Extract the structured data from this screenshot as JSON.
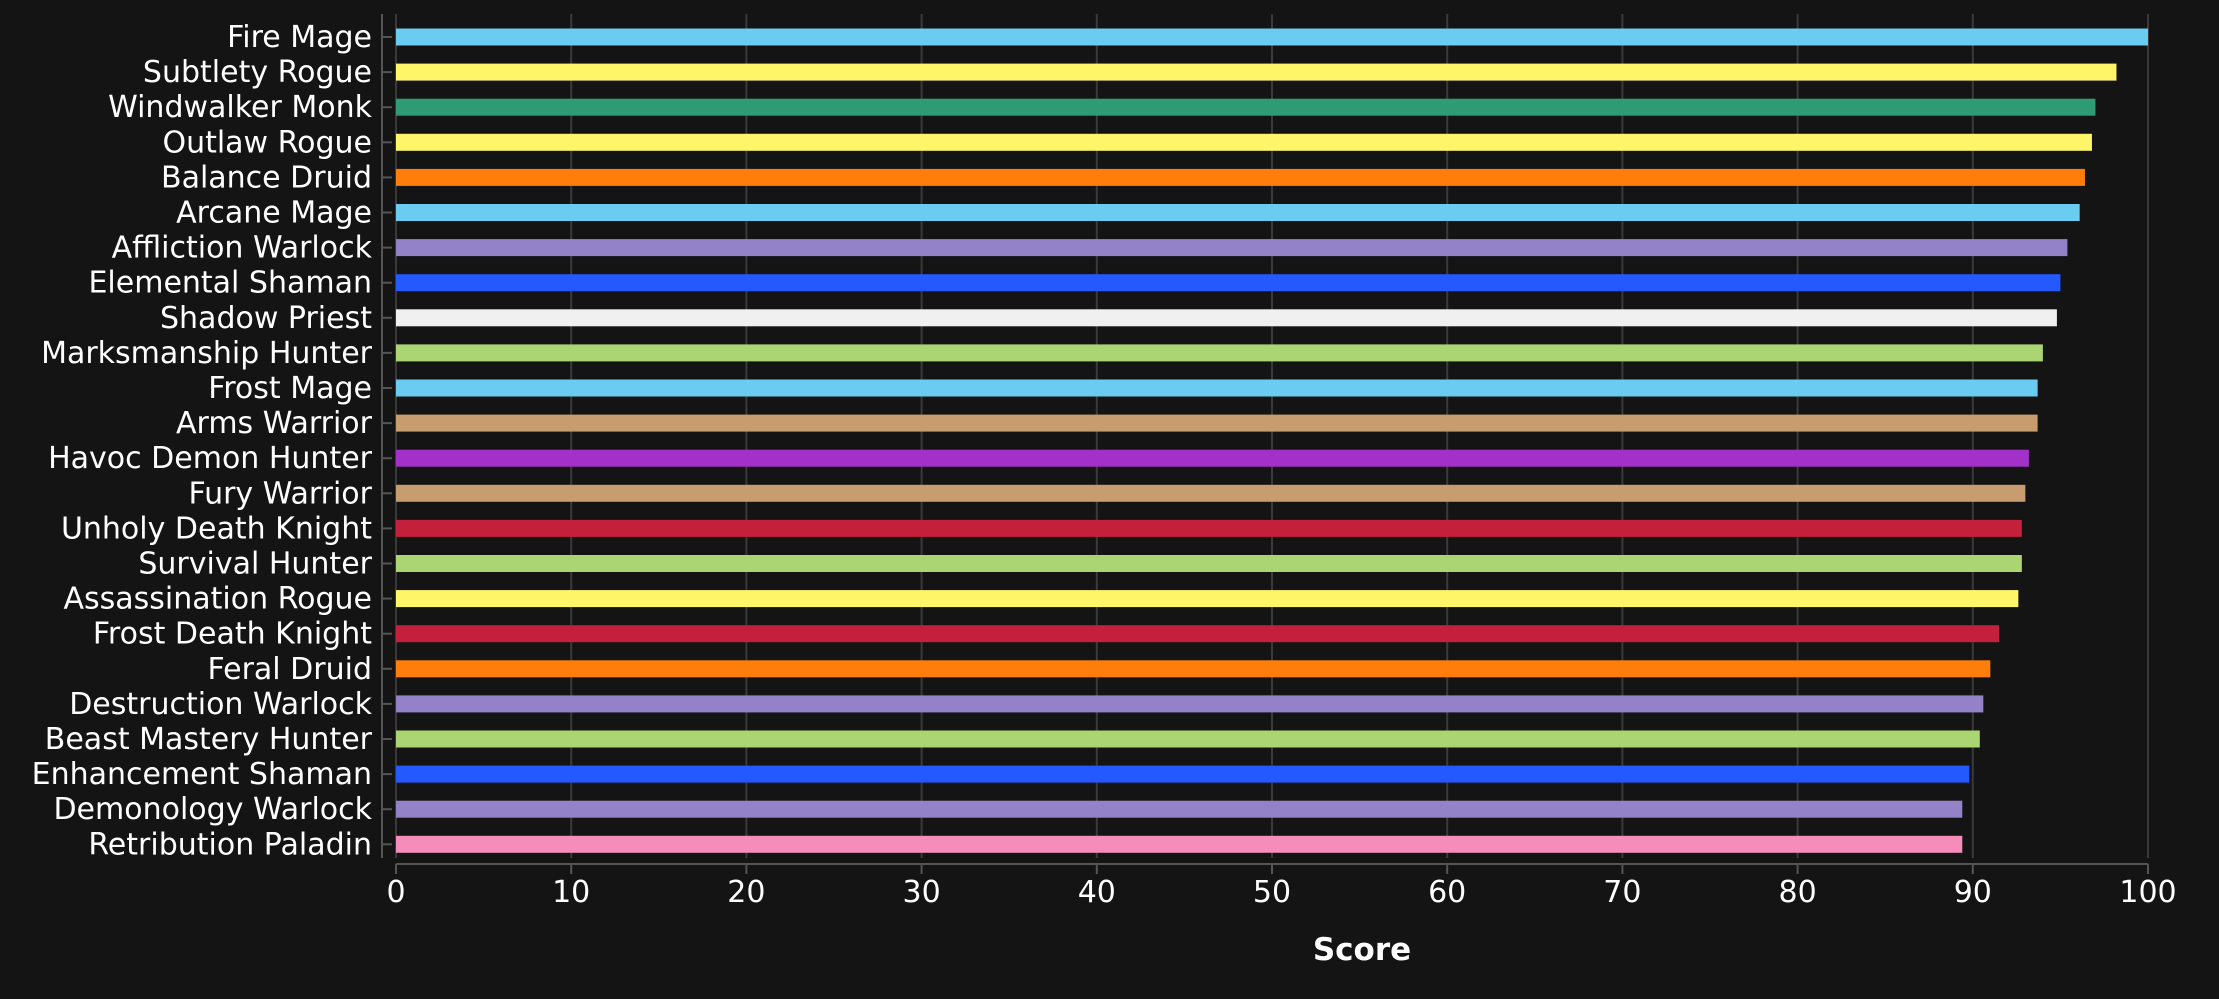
{
  "chart_data": {
    "type": "bar",
    "orientation": "horizontal",
    "xlabel": "Score",
    "ylabel": "",
    "xlim": [
      0,
      100
    ],
    "x_ticks": [
      0,
      10,
      20,
      30,
      40,
      50,
      60,
      70,
      80,
      90,
      100
    ],
    "grid": "vertical",
    "legend": "none",
    "background": "#141414",
    "categories": [
      "Fire Mage",
      "Subtlety Rogue",
      "Windwalker Monk",
      "Outlaw Rogue",
      "Balance Druid",
      "Arcane Mage",
      "Affliction Warlock",
      "Elemental Shaman",
      "Shadow Priest",
      "Marksmanship Hunter",
      "Frost Mage",
      "Arms Warrior",
      "Havoc Demon Hunter",
      "Fury Warrior",
      "Unholy Death Knight",
      "Survival Hunter",
      "Assassination Rogue",
      "Frost Death Knight",
      "Feral Druid",
      "Destruction Warlock",
      "Beast Mastery Hunter",
      "Enhancement Shaman",
      "Demonology Warlock",
      "Retribution Paladin"
    ],
    "values": [
      100,
      98.2,
      97.0,
      96.8,
      96.4,
      96.1,
      95.4,
      95.0,
      94.8,
      94.0,
      93.7,
      93.7,
      93.2,
      93.0,
      92.8,
      92.8,
      92.6,
      91.5,
      91.0,
      90.6,
      90.4,
      89.8,
      89.4,
      89.4
    ],
    "colors": [
      "#69ccf0",
      "#fff569",
      "#2e9b75",
      "#fff569",
      "#ff7d0a",
      "#69ccf0",
      "#9482c9",
      "#2459ff",
      "#f0f0f0",
      "#abd473",
      "#69ccf0",
      "#c79c6e",
      "#a330c9",
      "#c79c6e",
      "#c41f3b",
      "#abd473",
      "#fff569",
      "#c41f3b",
      "#ff7d0a",
      "#9482c9",
      "#abd473",
      "#2459ff",
      "#9482c9",
      "#f58cba"
    ]
  }
}
